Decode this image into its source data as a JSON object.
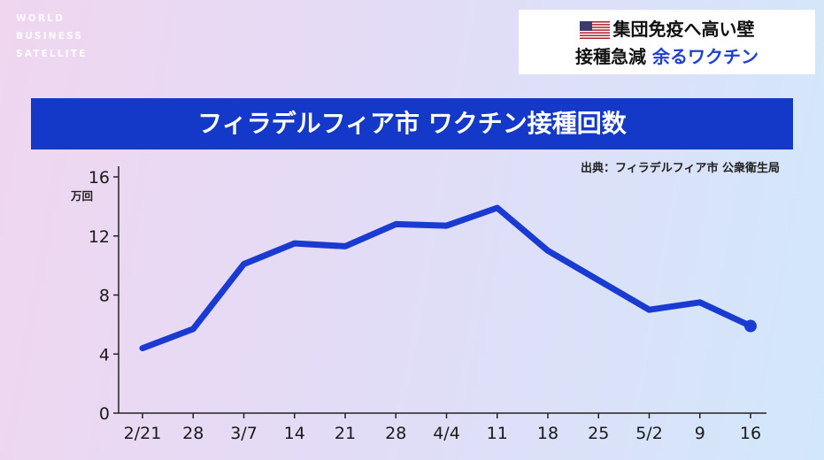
{
  "logo": {
    "lines": [
      "WORLD",
      "BUSINESS",
      "SATELLITE"
    ]
  },
  "topic": {
    "line1": "集団免疫へ高い壁",
    "line2_plain": "接種急減",
    "line2_accent": "余るワクチン",
    "flag_icon": "us-flag-icon"
  },
  "colors": {
    "title_bar": "#1438c8",
    "line": "#1a3bd1",
    "accent": "#2240d0"
  },
  "chart_data": {
    "type": "line",
    "title": "フィラデルフィア市 ワクチン接種回数",
    "source": "出典：フィラデルフィア市 公衆衛生局",
    "ylabel": "万回",
    "categories": [
      "2/21",
      "28",
      "3/7",
      "14",
      "21",
      "28",
      "4/4",
      "11",
      "18",
      "25",
      "5/2",
      "9",
      "16"
    ],
    "values": [
      4.4,
      5.7,
      10.1,
      11.5,
      11.3,
      12.8,
      12.7,
      13.9,
      11.0,
      9.0,
      7.0,
      7.5,
      5.9
    ],
    "yticks": [
      0,
      4,
      8,
      12,
      16
    ],
    "ylim": [
      0,
      16
    ],
    "grid": false,
    "end_marker": true
  }
}
